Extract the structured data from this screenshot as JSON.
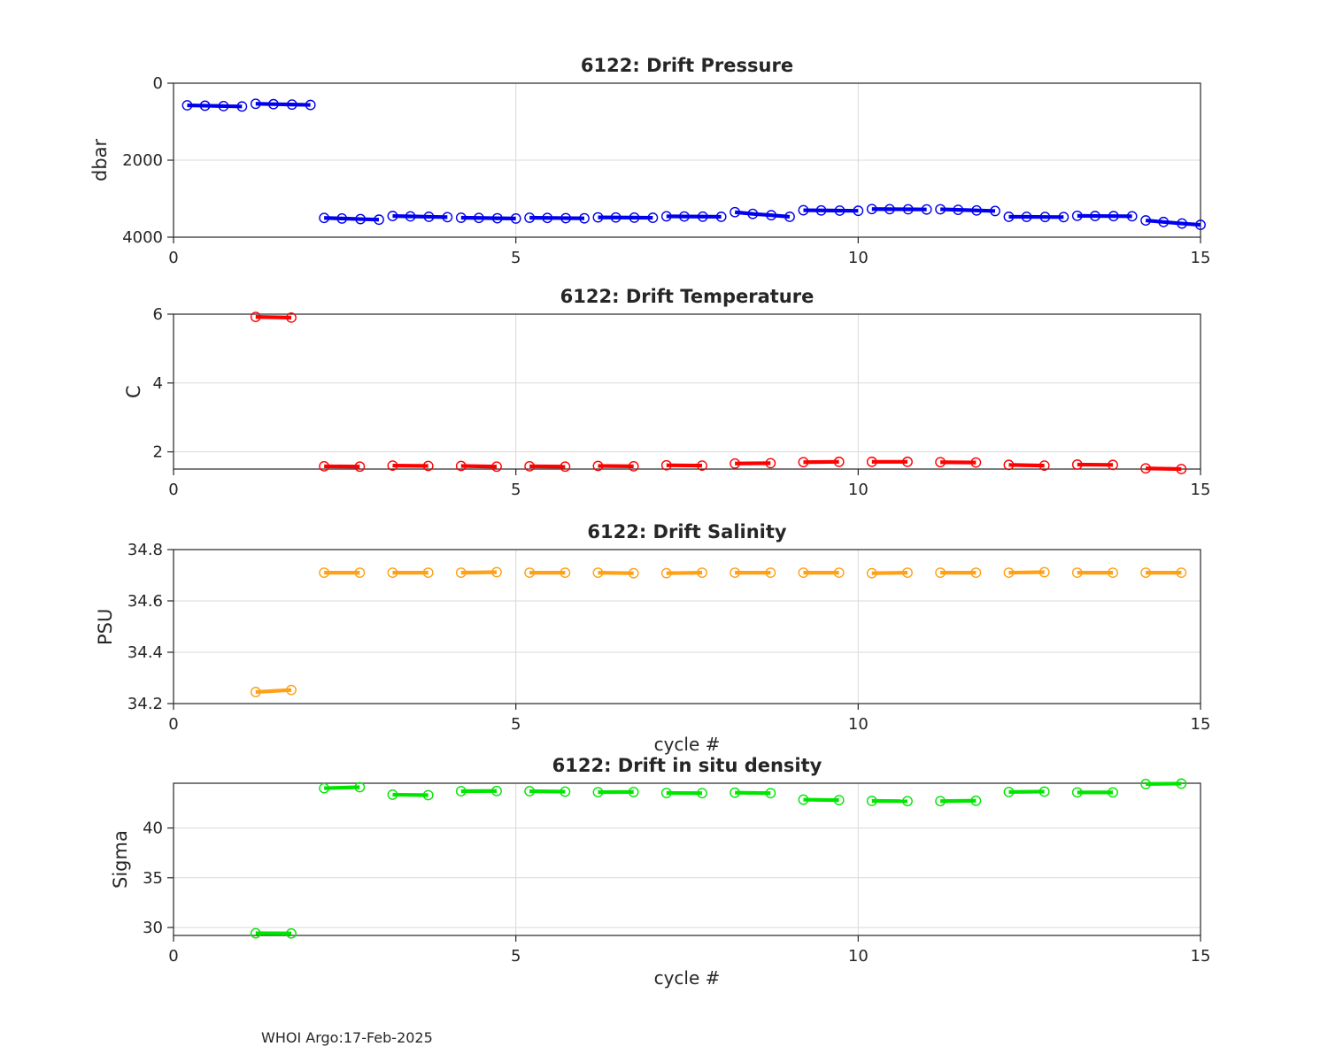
{
  "figure": {
    "annotation": "WHOI Argo:17-Feb-2025"
  },
  "style": {
    "background": "#ffffff",
    "axis_color": "#262626",
    "text_color": "#262626",
    "grid_color": "#d9d9d9"
  },
  "chart_data": [
    {
      "id": "pressure",
      "type": "line",
      "title": "6122: Drift Pressure",
      "ylabel": "dbar",
      "xlabel": "",
      "color": "#0000ee",
      "marker": "o",
      "grid": true,
      "xlim": [
        0,
        15
      ],
      "x_ticks": [
        0,
        5,
        10,
        15
      ],
      "ylim": [
        0,
        4000
      ],
      "y_reversed": true,
      "y_ticks": [
        0,
        2000,
        4000
      ],
      "segments": [
        {
          "x": [
            0.2,
            0.46,
            0.73,
            1.0
          ],
          "y": [
            575,
            585,
            595,
            605
          ]
        },
        {
          "x": [
            1.2,
            1.46,
            1.73,
            2.0
          ],
          "y": [
            535,
            545,
            555,
            565
          ]
        },
        {
          "x": [
            2.2,
            2.46,
            2.73,
            3.0
          ],
          "y": [
            3500,
            3515,
            3530,
            3545
          ]
        },
        {
          "x": [
            3.2,
            3.46,
            3.73,
            4.0
          ],
          "y": [
            3450,
            3460,
            3470,
            3480
          ]
        },
        {
          "x": [
            4.2,
            4.46,
            4.73,
            5.0
          ],
          "y": [
            3495,
            3500,
            3508,
            3515
          ]
        },
        {
          "x": [
            5.2,
            5.46,
            5.73,
            6.0
          ],
          "y": [
            3495,
            3500,
            3505,
            3510
          ]
        },
        {
          "x": [
            6.2,
            6.46,
            6.73,
            7.0
          ],
          "y": [
            3485,
            3488,
            3492,
            3496
          ]
        },
        {
          "x": [
            7.2,
            7.46,
            7.73,
            8.0
          ],
          "y": [
            3458,
            3462,
            3466,
            3470
          ]
        },
        {
          "x": [
            8.2,
            8.46,
            8.73,
            9.0
          ],
          "y": [
            3350,
            3395,
            3430,
            3470
          ]
        },
        {
          "x": [
            9.2,
            9.46,
            9.73,
            10.0
          ],
          "y": [
            3300,
            3305,
            3310,
            3315
          ]
        },
        {
          "x": [
            10.2,
            10.46,
            10.73,
            11.0
          ],
          "y": [
            3270,
            3273,
            3276,
            3280
          ]
        },
        {
          "x": [
            11.2,
            11.46,
            11.73,
            12.0
          ],
          "y": [
            3275,
            3290,
            3305,
            3320
          ]
        },
        {
          "x": [
            12.2,
            12.46,
            12.73,
            13.0
          ],
          "y": [
            3470,
            3472,
            3475,
            3478
          ]
        },
        {
          "x": [
            13.2,
            13.46,
            13.73,
            14.0
          ],
          "y": [
            3445,
            3450,
            3453,
            3457
          ]
        },
        {
          "x": [
            14.2,
            14.46,
            14.73,
            15.0
          ],
          "y": [
            3565,
            3605,
            3645,
            3680
          ]
        }
      ]
    },
    {
      "id": "temperature",
      "type": "line",
      "title": "6122: Drift Temperature",
      "ylabel": "C",
      "xlabel": "",
      "color": "#ff0000",
      "marker": "o",
      "grid": true,
      "xlim": [
        0,
        15
      ],
      "x_ticks": [
        0,
        5,
        10,
        15
      ],
      "ylim": [
        1.5,
        6.0
      ],
      "y_reversed": false,
      "y_ticks": [
        2,
        4,
        6
      ],
      "segments": [
        {
          "x": [
            1.2,
            1.72
          ],
          "y": [
            5.92,
            5.9
          ]
        },
        {
          "x": [
            2.2,
            2.72
          ],
          "y": [
            1.58,
            1.57
          ]
        },
        {
          "x": [
            3.2,
            3.72
          ],
          "y": [
            1.6,
            1.59
          ]
        },
        {
          "x": [
            4.2,
            4.72
          ],
          "y": [
            1.59,
            1.57
          ]
        },
        {
          "x": [
            5.2,
            5.72
          ],
          "y": [
            1.58,
            1.57
          ]
        },
        {
          "x": [
            6.2,
            6.72
          ],
          "y": [
            1.59,
            1.58
          ]
        },
        {
          "x": [
            7.2,
            7.72
          ],
          "y": [
            1.61,
            1.6
          ]
        },
        {
          "x": [
            8.2,
            8.72
          ],
          "y": [
            1.66,
            1.67
          ]
        },
        {
          "x": [
            9.2,
            9.72
          ],
          "y": [
            1.7,
            1.71
          ]
        },
        {
          "x": [
            10.2,
            10.72
          ],
          "y": [
            1.71,
            1.71
          ]
        },
        {
          "x": [
            11.2,
            11.72
          ],
          "y": [
            1.7,
            1.69
          ]
        },
        {
          "x": [
            12.2,
            12.72
          ],
          "y": [
            1.62,
            1.6
          ]
        },
        {
          "x": [
            13.2,
            13.72
          ],
          "y": [
            1.63,
            1.62
          ]
        },
        {
          "x": [
            14.2,
            14.72
          ],
          "y": [
            1.52,
            1.5
          ]
        }
      ]
    },
    {
      "id": "salinity",
      "type": "line",
      "title": "6122: Drift Salinity",
      "ylabel": "PSU",
      "xlabel": "cycle #",
      "color": "#ffa015",
      "marker": "o",
      "grid": true,
      "xlim": [
        0,
        15
      ],
      "x_ticks": [
        0,
        5,
        10,
        15
      ],
      "ylim": [
        34.2,
        34.8
      ],
      "y_reversed": false,
      "y_ticks": [
        34.2,
        34.4,
        34.6,
        34.8
      ],
      "segments": [
        {
          "x": [
            1.2,
            1.72
          ],
          "y": [
            34.245,
            34.253
          ]
        },
        {
          "x": [
            2.2,
            2.72
          ],
          "y": [
            34.71,
            34.71
          ]
        },
        {
          "x": [
            3.2,
            3.72
          ],
          "y": [
            34.71,
            34.71
          ]
        },
        {
          "x": [
            4.2,
            4.72
          ],
          "y": [
            34.71,
            34.712
          ]
        },
        {
          "x": [
            5.2,
            5.72
          ],
          "y": [
            34.71,
            34.71
          ]
        },
        {
          "x": [
            6.2,
            6.72
          ],
          "y": [
            34.71,
            34.708
          ]
        },
        {
          "x": [
            7.2,
            7.72
          ],
          "y": [
            34.708,
            34.71
          ]
        },
        {
          "x": [
            8.2,
            8.72
          ],
          "y": [
            34.71,
            34.71
          ]
        },
        {
          "x": [
            9.2,
            9.72
          ],
          "y": [
            34.71,
            34.71
          ]
        },
        {
          "x": [
            10.2,
            10.72
          ],
          "y": [
            34.708,
            34.71
          ]
        },
        {
          "x": [
            11.2,
            11.72
          ],
          "y": [
            34.71,
            34.71
          ]
        },
        {
          "x": [
            12.2,
            12.72
          ],
          "y": [
            34.71,
            34.712
          ]
        },
        {
          "x": [
            13.2,
            13.72
          ],
          "y": [
            34.71,
            34.71
          ]
        },
        {
          "x": [
            14.2,
            14.72
          ],
          "y": [
            34.71,
            34.71
          ]
        }
      ]
    },
    {
      "id": "density",
      "type": "line",
      "title": "6122: Drift in situ density",
      "ylabel": "Sigma",
      "xlabel": "cycle #",
      "color": "#00e500",
      "marker": "o",
      "grid": true,
      "xlim": [
        0,
        15
      ],
      "x_ticks": [
        0,
        5,
        10,
        15
      ],
      "ylim": [
        29.2,
        44.5
      ],
      "y_reversed": false,
      "y_ticks": [
        30,
        35,
        40
      ],
      "segments": [
        {
          "x": [
            1.2,
            1.72
          ],
          "y": [
            29.42,
            29.4
          ]
        },
        {
          "x": [
            2.2,
            2.72
          ],
          "y": [
            44.0,
            44.1
          ]
        },
        {
          "x": [
            3.2,
            3.72
          ],
          "y": [
            43.35,
            43.3
          ]
        },
        {
          "x": [
            4.2,
            4.72
          ],
          "y": [
            43.7,
            43.72
          ]
        },
        {
          "x": [
            5.2,
            5.72
          ],
          "y": [
            43.7,
            43.65
          ]
        },
        {
          "x": [
            6.2,
            6.72
          ],
          "y": [
            43.6,
            43.62
          ]
        },
        {
          "x": [
            7.2,
            7.72
          ],
          "y": [
            43.52,
            43.5
          ]
        },
        {
          "x": [
            8.2,
            8.72
          ],
          "y": [
            43.55,
            43.5
          ]
        },
        {
          "x": [
            9.2,
            9.72
          ],
          "y": [
            42.85,
            42.8
          ]
        },
        {
          "x": [
            10.2,
            10.72
          ],
          "y": [
            42.72,
            42.7
          ]
        },
        {
          "x": [
            11.2,
            11.72
          ],
          "y": [
            42.7,
            42.74
          ]
        },
        {
          "x": [
            12.2,
            12.72
          ],
          "y": [
            43.62,
            43.66
          ]
        },
        {
          "x": [
            13.2,
            13.72
          ],
          "y": [
            43.58,
            43.58
          ]
        },
        {
          "x": [
            14.2,
            14.72
          ],
          "y": [
            44.42,
            44.46
          ]
        }
      ]
    }
  ]
}
